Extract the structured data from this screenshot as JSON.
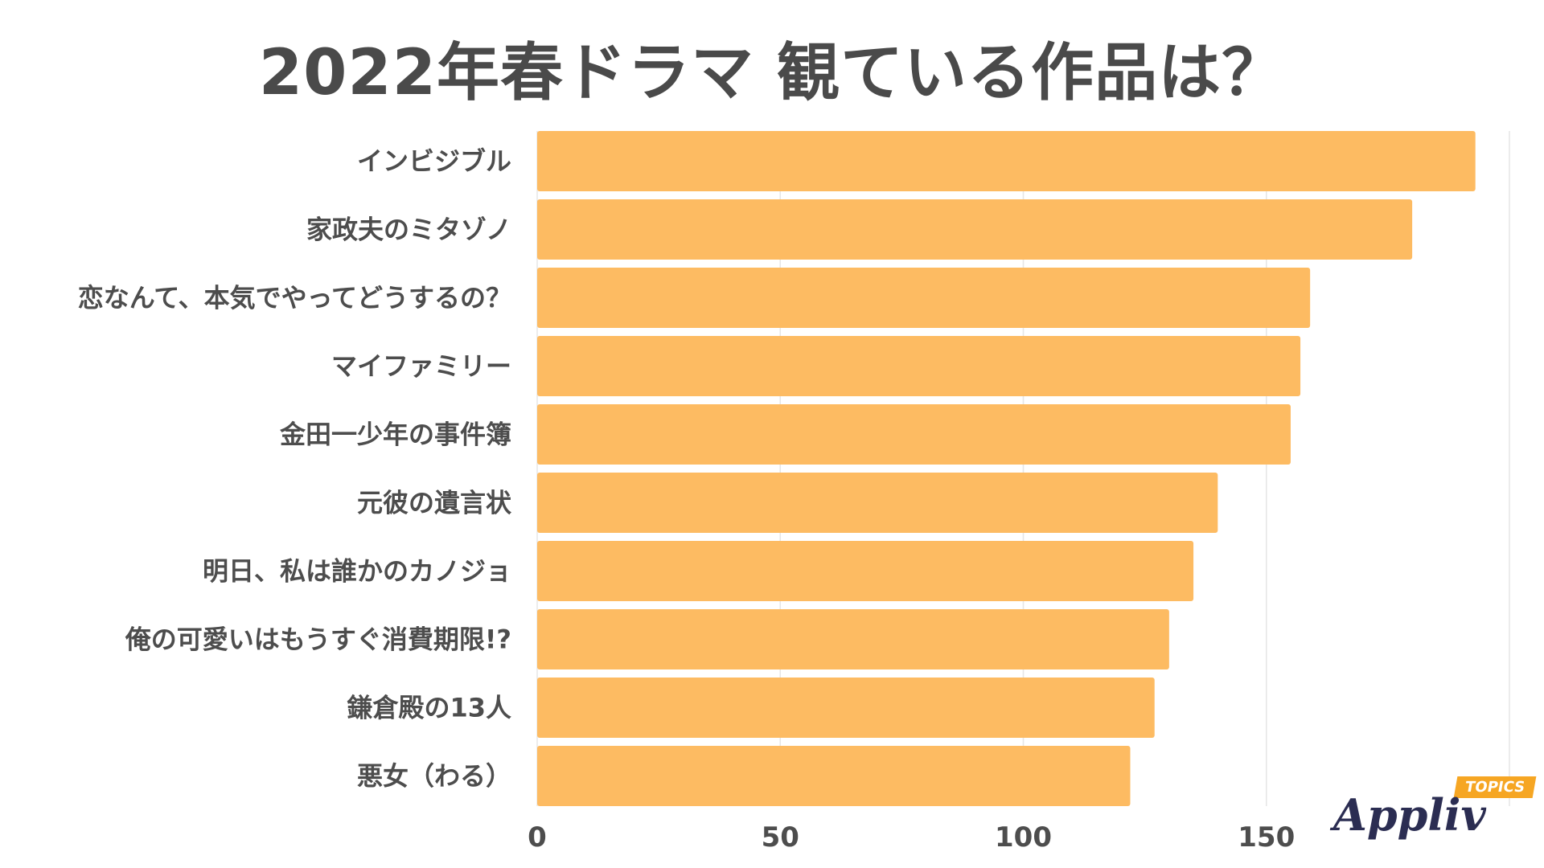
{
  "chart_data": {
    "type": "bar",
    "orientation": "horizontal",
    "title": "2022年春ドラマ 観ている作品は？",
    "categories": [
      "インビジブル",
      "家政夫のミタゾノ",
      "恋なんて、本気でやってどうするの？",
      "マイファミリー",
      "金田一少年の事件簿",
      "元彼の遺言状",
      "明日、私は誰かのカノジョ",
      "俺の可愛いはもうすぐ消費期限!?",
      "鎌倉殿の13人",
      "悪女（わる）"
    ],
    "values": [
      193,
      180,
      159,
      157,
      155,
      140,
      135,
      130,
      127,
      122
    ],
    "xlim": [
      0,
      200
    ],
    "xticks": [
      "0",
      "50",
      "100",
      "150"
    ],
    "grid": true,
    "bar_color": "#fdbb62"
  },
  "brand": {
    "name": "Appliv",
    "tag": "TOPICS"
  }
}
